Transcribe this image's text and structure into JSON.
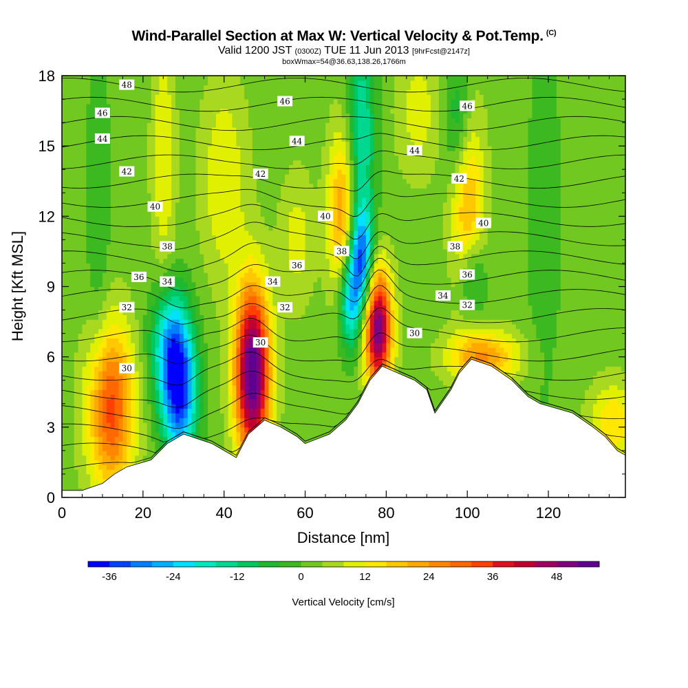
{
  "title": {
    "main": "Wind-Parallel Section at Max W: Vertical Velocity & Pot.Temp.",
    "main_tag": "(C)",
    "valid_prefix": "Valid 1200 JST",
    "valid_utc": "(0300Z)",
    "valid_date": "TUE 11 Jun 2013",
    "valid_fcst": "[9hrFcst@2147z]",
    "box_info": "boxWmax=54@36.63,138.26,1766m"
  },
  "chart_data": {
    "type": "heatmap",
    "xlabel": "Distance [nm]",
    "ylabel": "Height [Kft MSL]",
    "xlim": [
      0,
      139
    ],
    "ylim": [
      0,
      18
    ],
    "x_ticks": [
      0,
      20,
      40,
      60,
      80,
      100,
      120
    ],
    "y_ticks": [
      0,
      3,
      6,
      9,
      12,
      15,
      18
    ],
    "grid": false,
    "colorbar": {
      "label": "Vertical Velocity [cm/s]",
      "tick_labels": [
        "-36",
        "-24",
        "-12",
        "0",
        "12",
        "24",
        "36",
        "48"
      ],
      "tick_values": [
        -36,
        -24,
        -12,
        0,
        12,
        24,
        36,
        48
      ],
      "min": -40,
      "max": 56,
      "step": 4,
      "colors": [
        "#0000ff",
        "#0040ff",
        "#0080ff",
        "#00b0ff",
        "#00e0ff",
        "#00e8c0",
        "#00d890",
        "#00c860",
        "#20b830",
        "#3cb820",
        "#70c820",
        "#a8d820",
        "#e0f000",
        "#ffe800",
        "#ffc800",
        "#ffa800",
        "#ff8800",
        "#ff6800",
        "#ff4000",
        "#e01020",
        "#c00030",
        "#a00060",
        "#800080",
        "#600090"
      ]
    },
    "background_value": 2,
    "terrain_kft": [
      [
        0,
        0.3
      ],
      [
        5,
        0.3
      ],
      [
        10,
        0.6
      ],
      [
        13,
        1.0
      ],
      [
        16,
        1.3
      ],
      [
        22,
        1.6
      ],
      [
        26,
        2.3
      ],
      [
        30,
        2.7
      ],
      [
        37,
        2.3
      ],
      [
        40,
        2.0
      ],
      [
        43,
        1.7
      ],
      [
        46,
        2.7
      ],
      [
        50,
        3.3
      ],
      [
        54,
        3.0
      ],
      [
        58,
        2.6
      ],
      [
        60,
        2.3
      ],
      [
        66,
        2.7
      ],
      [
        70,
        3.3
      ],
      [
        73,
        4.0
      ],
      [
        76,
        5.0
      ],
      [
        79,
        5.6
      ],
      [
        83,
        5.3
      ],
      [
        87,
        5.0
      ],
      [
        90,
        4.6
      ],
      [
        92,
        3.6
      ],
      [
        96,
        4.6
      ],
      [
        98,
        5.3
      ],
      [
        101,
        5.9
      ],
      [
        106,
        5.6
      ],
      [
        111,
        5.0
      ],
      [
        115,
        4.3
      ],
      [
        118,
        4.0
      ],
      [
        126,
        3.6
      ],
      [
        131,
        3.0
      ],
      [
        134,
        2.6
      ],
      [
        137,
        2.0
      ],
      [
        139,
        1.8
      ]
    ],
    "velocity_cells": [
      {
        "x": 12,
        "z": 3.8,
        "sx": 4,
        "sz": 2.5,
        "w": 32
      },
      {
        "x": 29,
        "z": 4.6,
        "sx": 3,
        "sz": 2.2,
        "w": -38
      },
      {
        "x": 26,
        "z": 6.5,
        "sx": 3,
        "sz": 1.8,
        "w": -20
      },
      {
        "x": 47,
        "z": 5.3,
        "sx": 3,
        "sz": 2.6,
        "w": 56
      },
      {
        "x": 78,
        "z": 7.2,
        "sx": 2.3,
        "sz": 1.8,
        "w": 50
      },
      {
        "x": 74,
        "z": 10.2,
        "sx": 2,
        "sz": 1.5,
        "w": -30
      },
      {
        "x": 71,
        "z": 8.4,
        "sx": 2,
        "sz": 1.5,
        "w": -26
      },
      {
        "x": 74,
        "z": 15.5,
        "sx": 2.4,
        "sz": 3.5,
        "w": -18
      },
      {
        "x": 69,
        "z": 12,
        "sx": 2.4,
        "sz": 2.5,
        "w": 22
      },
      {
        "x": 100,
        "z": 12.5,
        "sx": 2.8,
        "sz": 3.2,
        "w": 20
      },
      {
        "x": 98,
        "z": 16,
        "sx": 2.5,
        "sz": 2,
        "w": -14
      },
      {
        "x": 101,
        "z": 9.3,
        "sx": 2.5,
        "sz": 1.3,
        "w": -16
      },
      {
        "x": 104,
        "z": 6,
        "sx": 6,
        "sz": 0.8,
        "w": 22
      },
      {
        "x": 136,
        "z": 3.2,
        "sx": 4,
        "sz": 1.2,
        "w": 14
      },
      {
        "x": 9,
        "z": 12,
        "sx": 2,
        "sz": 6,
        "w": -6
      },
      {
        "x": 25,
        "z": 14.5,
        "sx": 2,
        "sz": 4,
        "w": 10
      },
      {
        "x": 40,
        "z": 13.5,
        "sx": 4,
        "sz": 3,
        "w": 10
      },
      {
        "x": 58,
        "z": 11,
        "sx": 3,
        "sz": 2,
        "w": 8
      },
      {
        "x": 88,
        "z": 16.5,
        "sx": 4,
        "sz": 2,
        "w": 8
      },
      {
        "x": 119,
        "z": 12,
        "sx": 3,
        "sz": 6,
        "w": -5
      }
    ],
    "isentropes": {
      "levels": [
        28,
        29,
        30,
        31,
        32,
        33,
        34,
        35,
        36,
        37,
        38,
        39,
        40,
        41,
        42,
        43,
        44,
        45,
        46,
        47,
        48
      ],
      "labels": [
        {
          "text": "48",
          "x": 16,
          "z": 17.6
        },
        {
          "text": "46",
          "x": 10,
          "z": 16.4
        },
        {
          "text": "44",
          "x": 10,
          "z": 15.3
        },
        {
          "text": "42",
          "x": 16,
          "z": 13.9
        },
        {
          "text": "40",
          "x": 23,
          "z": 12.4
        },
        {
          "text": "38",
          "x": 26,
          "z": 10.7
        },
        {
          "text": "36",
          "x": 19,
          "z": 9.4
        },
        {
          "text": "34",
          "x": 26,
          "z": 9.2
        },
        {
          "text": "32",
          "x": 16,
          "z": 8.1
        },
        {
          "text": "30",
          "x": 16,
          "z": 5.5
        },
        {
          "text": "46",
          "x": 55,
          "z": 16.9
        },
        {
          "text": "44",
          "x": 58,
          "z": 15.2
        },
        {
          "text": "42",
          "x": 49,
          "z": 13.8
        },
        {
          "text": "40",
          "x": 65,
          "z": 12.0
        },
        {
          "text": "38",
          "x": 69,
          "z": 10.5
        },
        {
          "text": "36",
          "x": 58,
          "z": 9.9
        },
        {
          "text": "34",
          "x": 52,
          "z": 9.2
        },
        {
          "text": "32",
          "x": 55,
          "z": 8.1
        },
        {
          "text": "30",
          "x": 49,
          "z": 6.6
        },
        {
          "text": "46",
          "x": 100,
          "z": 16.7
        },
        {
          "text": "44",
          "x": 87,
          "z": 14.8
        },
        {
          "text": "42",
          "x": 98,
          "z": 13.6
        },
        {
          "text": "40",
          "x": 104,
          "z": 11.7
        },
        {
          "text": "38",
          "x": 97,
          "z": 10.7
        },
        {
          "text": "36",
          "x": 100,
          "z": 9.5
        },
        {
          "text": "34",
          "x": 94,
          "z": 8.6
        },
        {
          "text": "32",
          "x": 100,
          "z": 8.2
        },
        {
          "text": "30",
          "x": 87,
          "z": 7.0
        }
      ]
    }
  }
}
